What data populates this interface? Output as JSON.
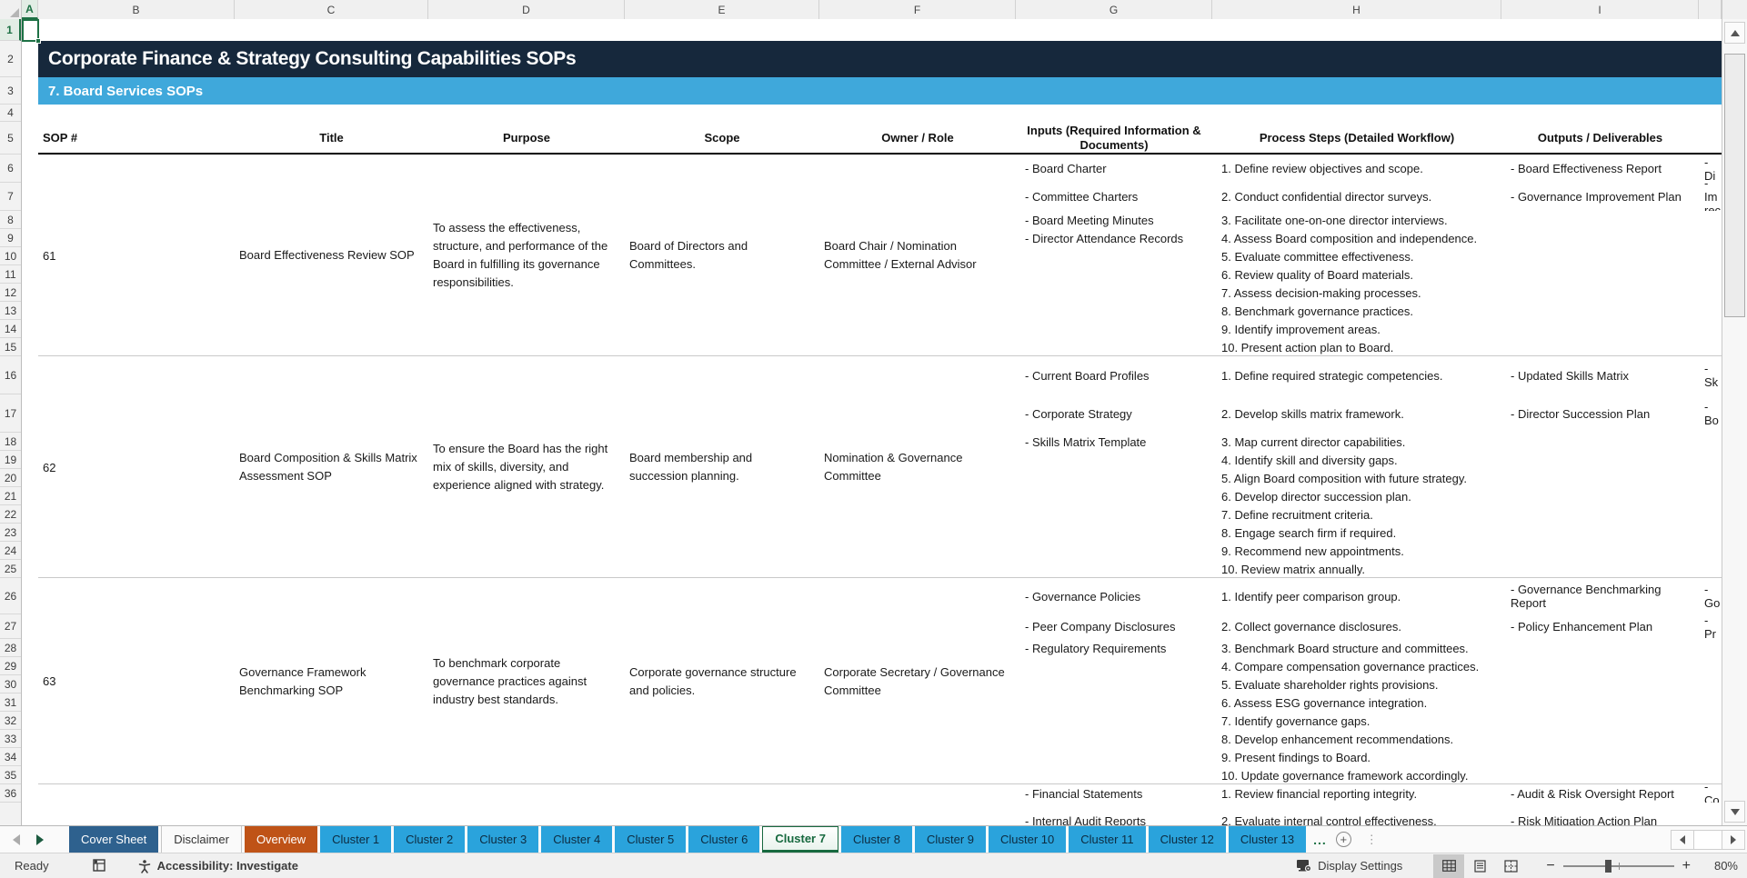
{
  "colors": {
    "title_banner_bg": "#16283C",
    "section_banner_bg": "#3FA8DB",
    "header_underline": "#000000",
    "block_divider": "#C9C9C9",
    "excel_green": "#1E7145",
    "tab_blue": "#2AA3DC",
    "tab_navy": "#2E618E",
    "tab_orange": "#BF5317"
  },
  "spreadsheet": {
    "selected_cell": "A1",
    "column_headers": [
      "A",
      "B",
      "C",
      "D",
      "E",
      "F",
      "G",
      "H",
      "I"
    ],
    "row_numbers": [
      "1",
      "2",
      "3",
      "4",
      "5",
      "6",
      "7",
      "8",
      "9",
      "10",
      "11",
      "12",
      "13",
      "14",
      "15",
      "16",
      "17",
      "18",
      "19",
      "20",
      "21",
      "22",
      "23",
      "24",
      "25",
      "26",
      "27",
      "28",
      "29",
      "30",
      "31",
      "32",
      "33",
      "34",
      "35",
      "36"
    ],
    "banners": {
      "title": "Corporate Finance & Strategy Consulting Capabilities SOPs",
      "section": "7. Board Services SOPs"
    },
    "table": {
      "headers": [
        "SOP #",
        "Title",
        "Purpose",
        "Scope",
        "Owner / Role",
        "Inputs (Required Information & Documents)",
        "Process Steps (Detailed Workflow)",
        "Outputs / Deliverables"
      ],
      "sops": [
        {
          "sop": "61",
          "title": "Board Effectiveness Review SOP",
          "purpose": "To assess the effectiveness, structure, and performance of the Board in fulfilling its governance responsibilities.",
          "scope": "Board of Directors and Committees.",
          "owner": "Board Chair / Nomination Committee / External Advisor",
          "inputs": [
            "- Board Charter",
            "- Committee Charters",
            "- Board Meeting Minutes",
            "- Director Attendance Records"
          ],
          "steps": [
            "1. Define review objectives and scope.",
            "2. Conduct confidential director surveys.",
            "3. Facilitate one-on-one director interviews.",
            "4. Assess Board composition and independence.",
            "5. Evaluate committee effectiveness.",
            "6. Review quality of Board materials.",
            "7. Assess decision-making processes.",
            "8. Benchmark governance practices.",
            "9. Identify improvement areas.",
            "10. Present action plan to Board."
          ],
          "outputs": [
            "- Board Effectiveness Report",
            "- Governance Improvement Plan"
          ],
          "clipped": [
            "- Di",
            "- Im rec"
          ]
        },
        {
          "sop": "62",
          "title": "Board Composition & Skills Matrix Assessment SOP",
          "purpose": "To ensure the Board has the right mix of skills, diversity, and experience aligned with strategy.",
          "scope": "Board membership and succession planning.",
          "owner": "Nomination & Governance Committee",
          "inputs": [
            "- Current Board Profiles",
            "- Corporate Strategy",
            "- Skills Matrix Template"
          ],
          "steps": [
            "1. Define required strategic competencies.",
            "2. Develop skills matrix framework.",
            "3. Map current director capabilities.",
            "4. Identify skill and diversity gaps.",
            "5. Align Board composition with future strategy.",
            "6. Develop director succession plan.",
            "7. Define recruitment criteria.",
            "8. Engage search firm if required.",
            "9. Recommend new appointments.",
            "10. Review matrix annually."
          ],
          "outputs": [
            "- Updated Skills Matrix",
            "- Director Succession Plan"
          ],
          "clipped": [
            "- Sk",
            "- Bo"
          ]
        },
        {
          "sop": "63",
          "title": "Governance Framework Benchmarking SOP",
          "purpose": "To benchmark corporate governance practices against industry best standards.",
          "scope": "Corporate governance structure and policies.",
          "owner": "Corporate Secretary / Governance Committee",
          "inputs": [
            "- Governance Policies",
            "- Peer Company Disclosures",
            "- Regulatory Requirements"
          ],
          "steps": [
            "1. Identify peer comparison group.",
            "2. Collect governance disclosures.",
            "3. Benchmark Board structure and committees.",
            "4. Compare compensation governance practices.",
            "5. Evaluate shareholder rights provisions.",
            "6. Assess ESG governance integration.",
            "7. Identify governance gaps.",
            "8. Develop enhancement recommendations.",
            "9. Present findings to Board.",
            "10. Update governance framework accordingly."
          ],
          "outputs": [
            "- Governance Benchmarking Report",
            "- Policy Enhancement Plan"
          ],
          "clipped": [
            "- Go",
            "- Pr"
          ]
        },
        {
          "sop": "",
          "title": "",
          "purpose": "",
          "scope": "",
          "owner": "",
          "inputs": [
            "- Financial Statements",
            "- Internal Audit Reports"
          ],
          "steps": [
            "1. Review financial reporting integrity.",
            "2. Evaluate internal control effectiveness."
          ],
          "outputs": [
            "- Audit & Risk Oversight Report",
            "- Risk Mitigation Action Plan"
          ],
          "clipped": [
            "- Co"
          ],
          "partial": true
        }
      ]
    }
  },
  "tabs": {
    "items": [
      {
        "label": "Cover Sheet",
        "style": "navy"
      },
      {
        "label": "Disclaimer",
        "style": "plain"
      },
      {
        "label": "Overview",
        "style": "orange"
      },
      {
        "label": "Cluster 1",
        "style": "blue"
      },
      {
        "label": "Cluster 2",
        "style": "blue"
      },
      {
        "label": "Cluster 3",
        "style": "blue"
      },
      {
        "label": "Cluster 4",
        "style": "blue"
      },
      {
        "label": "Cluster 5",
        "style": "blue"
      },
      {
        "label": "Cluster 6",
        "style": "blue"
      },
      {
        "label": "Cluster 7",
        "style": "active"
      },
      {
        "label": "Cluster 8",
        "style": "blue"
      },
      {
        "label": "Cluster 9",
        "style": "blue"
      },
      {
        "label": "Cluster 10",
        "style": "blue"
      },
      {
        "label": "Cluster 11",
        "style": "blue"
      },
      {
        "label": "Cluster 12",
        "style": "blue"
      },
      {
        "label": "Cluster 13",
        "style": "blue"
      }
    ],
    "ellipsis": "...",
    "add_label": "+"
  },
  "status_bar": {
    "ready": "Ready",
    "accessibility": "Accessibility: Investigate",
    "display_settings": "Display Settings",
    "zoom": "80%"
  }
}
